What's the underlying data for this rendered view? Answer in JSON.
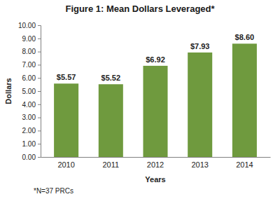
{
  "chart_data": {
    "type": "bar",
    "title": "Figure 1: Mean Dollars Leveraged*",
    "x_label": "Years",
    "y_label": "Dollars",
    "annotations": [
      "*N=37 PRCs"
    ],
    "categories": [
      "2010",
      "2011",
      "2012",
      "2013",
      "2014"
    ],
    "values": [
      5.57,
      5.52,
      6.92,
      7.93,
      8.6
    ],
    "value_labels": [
      "$5.57",
      "$5.52",
      "$6.92",
      "$7.93",
      "$8.60"
    ],
    "data_labels": true,
    "color": "#6f9a3e",
    "ylim": [
      0,
      10
    ],
    "yticks": [
      {
        "value": 0,
        "label": "0.00"
      },
      {
        "value": 1,
        "label": "1.00"
      },
      {
        "value": 2,
        "label": "2.00"
      },
      {
        "value": 3,
        "label": "3.00"
      },
      {
        "value": 4,
        "label": "4.00"
      },
      {
        "value": 5,
        "label": "5.00"
      },
      {
        "value": 6,
        "label": "6.00"
      },
      {
        "value": 7,
        "label": "7.00"
      },
      {
        "value": 8,
        "label": "8.00"
      },
      {
        "value": 9,
        "label": "9.00"
      },
      {
        "value": 10,
        "label": "10.00"
      }
    ],
    "grid": false
  }
}
